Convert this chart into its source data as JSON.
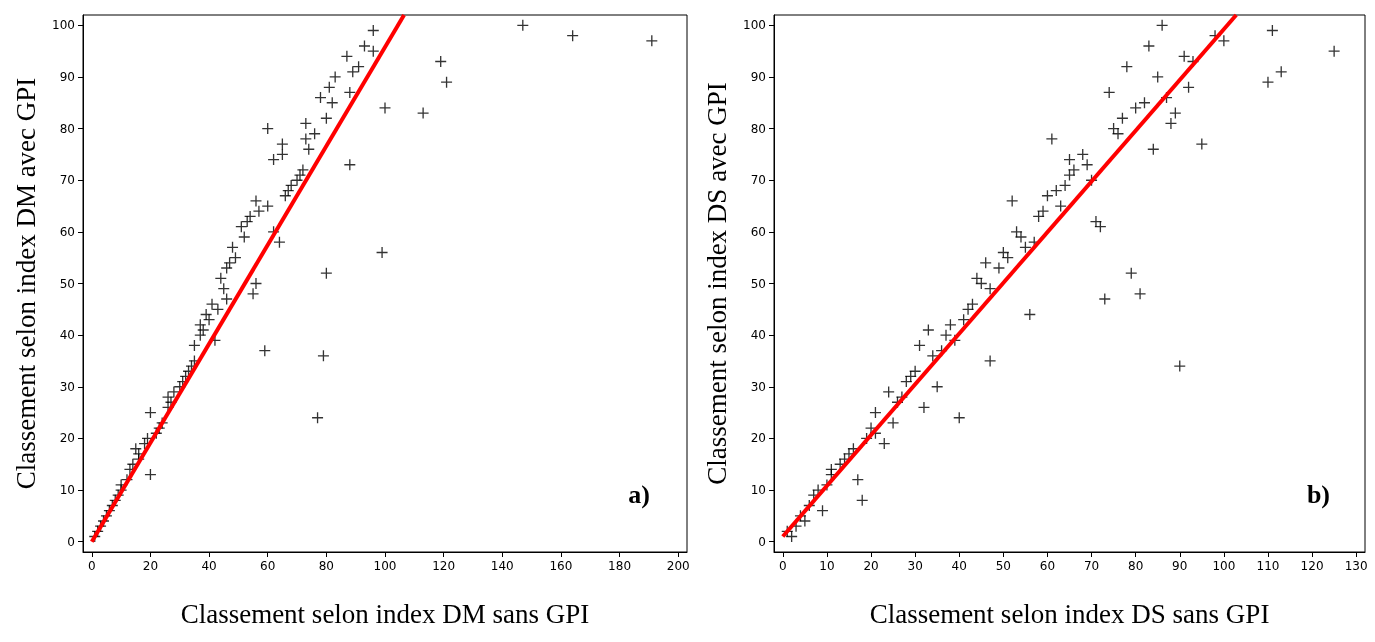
{
  "chart_data": [
    {
      "type": "scatter",
      "xlabel": "Classement selon index DM sans GPI",
      "ylabel": "Classement selon index DM avec GPI",
      "annotations": [
        "a)"
      ],
      "xlim": [
        -3,
        203
      ],
      "ylim": [
        -2,
        102
      ],
      "xticks": [
        0,
        20,
        40,
        60,
        80,
        100,
        120,
        140,
        160,
        180,
        200
      ],
      "yticks": [
        0,
        10,
        20,
        30,
        40,
        50,
        60,
        70,
        80,
        90,
        100
      ],
      "grid": false,
      "series": [
        {
          "marker": "cross",
          "color": "#000000",
          "x": [
            1,
            2,
            3,
            4,
            5,
            6,
            7,
            8,
            9,
            10,
            10,
            12,
            20,
            13,
            14,
            16,
            16,
            15,
            18,
            19,
            22,
            23,
            24,
            77,
            20,
            26,
            27,
            26,
            28,
            30,
            31,
            32,
            33,
            34,
            35,
            79,
            59,
            35,
            42,
            37,
            38,
            37,
            40,
            39,
            43,
            41,
            46,
            55,
            45,
            56,
            44,
            80,
            46,
            47,
            49,
            99,
            48,
            64,
            52,
            62,
            51,
            53,
            54,
            57,
            60,
            56,
            66,
            67,
            68,
            70,
            71,
            72,
            88,
            62,
            65,
            74,
            65,
            73,
            76,
            60,
            73,
            80,
            113,
            100,
            82,
            78,
            88,
            81,
            121,
            83,
            89,
            91,
            119,
            87,
            96,
            93,
            191,
            164,
            96,
            147
          ],
          "values": [
            1,
            2,
            3,
            4,
            5,
            6,
            7,
            8,
            9,
            10,
            11,
            12,
            13,
            14,
            15,
            16,
            17,
            18,
            19,
            20,
            21,
            22,
            23,
            24,
            25,
            26,
            27,
            28,
            29,
            30,
            31,
            32,
            33,
            34,
            35,
            36,
            37,
            38,
            39,
            40,
            41,
            42,
            43,
            44,
            45,
            46,
            47,
            48,
            49,
            50,
            51,
            52,
            53,
            54,
            55,
            56,
            57,
            58,
            59,
            60,
            61,
            62,
            63,
            64,
            65,
            66,
            67,
            68,
            69,
            70,
            71,
            72,
            73,
            74,
            75,
            76,
            77,
            78,
            79,
            80,
            81,
            82,
            83,
            84,
            85,
            86,
            87,
            88,
            89,
            90,
            91,
            92,
            93,
            94,
            95,
            96,
            97,
            98,
            99,
            100
          ]
        },
        {
          "type": "line",
          "marker": "none",
          "color": "#ff0000",
          "x": [
            0,
            106.5
          ],
          "values": [
            0,
            102
          ]
        }
      ]
    },
    {
      "type": "scatter",
      "xlabel": "Classement selon index DS sans GPI",
      "ylabel": "Classement selon index DS avec GPI",
      "annotations": [
        "b)"
      ],
      "xlim": [
        -2,
        132
      ],
      "ylim": [
        -2,
        102
      ],
      "xticks": [
        0,
        10,
        20,
        30,
        40,
        50,
        60,
        70,
        80,
        90,
        100,
        110,
        120,
        130
      ],
      "yticks": [
        0,
        10,
        20,
        30,
        40,
        50,
        60,
        70,
        80,
        90,
        100
      ],
      "grid": false,
      "series": [
        {
          "marker": "cross",
          "color": "#000000",
          "x": [
            2,
            1,
            3,
            5,
            4,
            9,
            6,
            18,
            7,
            8,
            10,
            17,
            11,
            11,
            13,
            14,
            15,
            16,
            23,
            19,
            21,
            20,
            25,
            40,
            21,
            32,
            26,
            27,
            24,
            35,
            28,
            29,
            30,
            90,
            47,
            34,
            36,
            31,
            39,
            37,
            33,
            38,
            41,
            56,
            42,
            43,
            73,
            81,
            47,
            45,
            44,
            79,
            49,
            46,
            51,
            50,
            55,
            57,
            54,
            53,
            72,
            71,
            58,
            59,
            63,
            52,
            60,
            62,
            64,
            70,
            65,
            66,
            69,
            65,
            68,
            84,
            95,
            61,
            76,
            75,
            88,
            77,
            89,
            80,
            82,
            87,
            74,
            92,
            110,
            85,
            113,
            78,
            93,
            91,
            125,
            83,
            100,
            98,
            111,
            86
          ],
          "values": [
            1,
            2,
            3,
            4,
            5,
            6,
            7,
            8,
            9,
            10,
            11,
            12,
            13,
            14,
            15,
            16,
            17,
            18,
            19,
            20,
            21,
            22,
            23,
            24,
            25,
            26,
            27,
            28,
            29,
            30,
            31,
            32,
            33,
            34,
            35,
            36,
            37,
            38,
            39,
            40,
            41,
            42,
            43,
            44,
            45,
            46,
            47,
            48,
            49,
            50,
            51,
            52,
            53,
            54,
            55,
            56,
            57,
            58,
            59,
            60,
            61,
            62,
            63,
            64,
            65,
            66,
            67,
            68,
            69,
            70,
            71,
            72,
            73,
            74,
            75,
            76,
            77,
            78,
            79,
            80,
            81,
            82,
            83,
            84,
            85,
            86,
            87,
            88,
            89,
            90,
            91,
            92,
            93,
            94,
            95,
            96,
            97,
            98,
            99,
            100
          ]
        },
        {
          "type": "line",
          "marker": "none",
          "color": "#ff0000",
          "x": [
            0,
            102.8
          ],
          "values": [
            1,
            102
          ]
        }
      ]
    }
  ]
}
